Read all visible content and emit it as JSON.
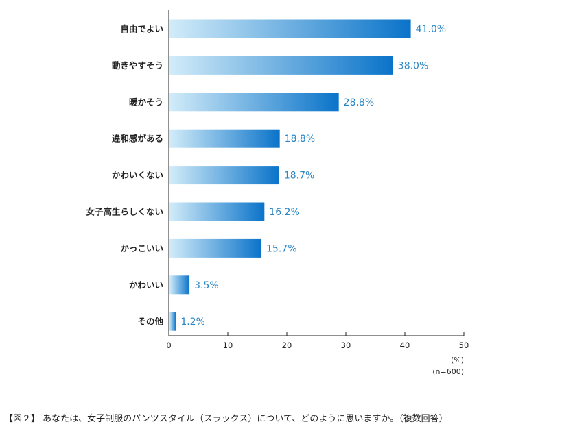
{
  "chart_data": {
    "type": "bar",
    "orientation": "horizontal",
    "categories": [
      "自由でよい",
      "動きやすそう",
      "暖かそう",
      "違和感がある",
      "かわいくない",
      "女子高生らしくない",
      "かっこいい",
      "かわいい",
      "その他"
    ],
    "values": [
      41.0,
      38.0,
      28.8,
      18.8,
      18.7,
      16.2,
      15.7,
      3.5,
      1.2
    ],
    "value_labels": [
      "41.0%",
      "38.0%",
      "28.8%",
      "18.8%",
      "18.7%",
      "16.2%",
      "15.7%",
      "3.5%",
      "1.2%"
    ],
    "xlim": [
      0,
      50
    ],
    "xticks": [
      "0",
      "10",
      "20",
      "30",
      "40",
      "50"
    ],
    "xunit": "(%)",
    "sample_note": "(n=600)",
    "grid": false,
    "colors": {
      "bar_start": "#d2ecf9",
      "bar_end": "#0a73c9",
      "value_text": "#2a86c4"
    }
  },
  "caption": "【図２】 あなたは、女子制服のパンツスタイル（スラックス）について、どのように思いますか。（複数回答）"
}
